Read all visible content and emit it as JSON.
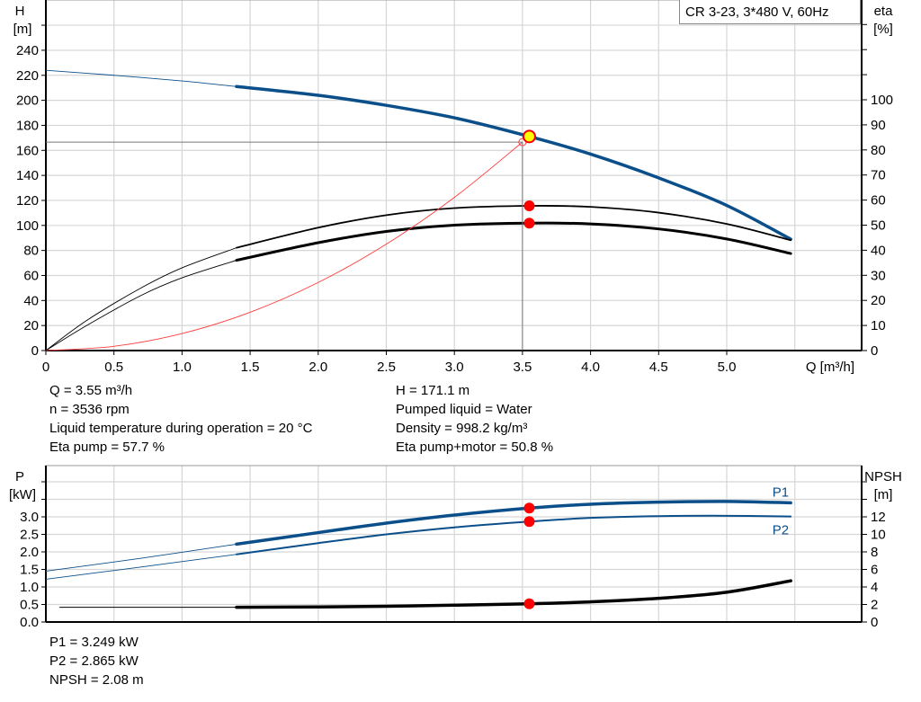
{
  "chart_data": [
    {
      "type": "line",
      "legend_box": "CR 3-23, 3*480 V, 60Hz",
      "xlabel": "Q [m³/h]",
      "ylabel_left": {
        "name": "H",
        "unit": "[m]"
      },
      "ylabel_right": {
        "name": "eta",
        "unit": "[%]"
      },
      "xlim": [
        0,
        6.0
      ],
      "ylim_left": [
        0,
        280
      ],
      "ylim_right": [
        0,
        140
      ],
      "x_ticks": [
        "0",
        "0.5",
        "1.0",
        "1.5",
        "2.0",
        "2.5",
        "3.0",
        "3.5",
        "4.0",
        "4.5",
        "5.0"
      ],
      "y_ticks_left": [
        "0",
        "20",
        "40",
        "60",
        "80",
        "100",
        "120",
        "140",
        "160",
        "180",
        "200",
        "220",
        "240"
      ],
      "y_ticks_right": [
        "0",
        "10",
        "20",
        "30",
        "40",
        "50",
        "60",
        "70",
        "80",
        "90",
        "100"
      ],
      "grid": true,
      "series": [
        {
          "id": "H",
          "axis": "left",
          "color": "#0b4f8a",
          "thin_until": 1.4,
          "points": [
            [
              0,
              224
            ],
            [
              0.5,
              220
            ],
            [
              1.0,
              215.5
            ],
            [
              1.4,
              211
            ],
            [
              2.0,
              204
            ],
            [
              2.5,
              196
            ],
            [
              3.0,
              186
            ],
            [
              3.55,
              171.1
            ],
            [
              4.0,
              157
            ],
            [
              4.5,
              138
            ],
            [
              5.0,
              116
            ],
            [
              5.47,
              89
            ]
          ]
        },
        {
          "id": "eta-pump",
          "axis": "right",
          "color": "#000000",
          "thin_until": 1.4,
          "width": 1.8,
          "points": [
            [
              0,
              0
            ],
            [
              0.3,
              12
            ],
            [
              0.7,
              25
            ],
            [
              1.0,
              33
            ],
            [
              1.4,
              41
            ],
            [
              2.0,
              49
            ],
            [
              2.5,
              54
            ],
            [
              3.0,
              56.8
            ],
            [
              3.55,
              57.7
            ],
            [
              4.0,
              57.3
            ],
            [
              4.5,
              55
            ],
            [
              5.0,
              50.5
            ],
            [
              5.47,
              44
            ]
          ]
        },
        {
          "id": "eta-pump-motor",
          "axis": "right",
          "color": "#000000",
          "thin_until": 1.4,
          "width": 3,
          "points": [
            [
              0,
              0
            ],
            [
              0.3,
              10
            ],
            [
              0.7,
              22
            ],
            [
              1.0,
              29
            ],
            [
              1.4,
              36
            ],
            [
              2.0,
              43
            ],
            [
              2.5,
              47.5
            ],
            [
              3.0,
              50
            ],
            [
              3.55,
              50.8
            ],
            [
              4.0,
              50.5
            ],
            [
              4.5,
              48.5
            ],
            [
              5.0,
              44.5
            ],
            [
              5.47,
              38.7
            ]
          ]
        },
        {
          "id": "system-curve",
          "axis": "left",
          "color": "#ff3b3b",
          "points": [
            [
              0,
              0
            ],
            [
              0.5,
              3.4
            ],
            [
              1.0,
              13.6
            ],
            [
              1.5,
              30.6
            ],
            [
              2.0,
              54.4
            ],
            [
              2.5,
              85
            ],
            [
              3.0,
              122.4
            ],
            [
              3.5,
              166.6
            ]
          ]
        }
      ],
      "operating_point": {
        "Q": 3.55,
        "H": 171.1,
        "eta_pump": 57.7,
        "eta_total": 50.8
      },
      "reference_point": {
        "Q": 3.5,
        "H": 166.6
      }
    },
    {
      "type": "line",
      "ylabel_left": {
        "name": "P",
        "unit": "[kW]"
      },
      "ylabel_right": {
        "name": "NPSH",
        "unit": "[m]"
      },
      "xlim": [
        0,
        6.0
      ],
      "ylim_left": [
        0,
        4.5
      ],
      "ylim_right": [
        0,
        18
      ],
      "y_ticks_left": [
        "0.0",
        "0.5",
        "1.0",
        "1.5",
        "2.0",
        "2.5",
        "3.0"
      ],
      "y_ticks_right": [
        "0",
        "2",
        "4",
        "6",
        "8",
        "10",
        "12"
      ],
      "grid": true,
      "series": [
        {
          "id": "P1",
          "name": "P1",
          "axis": "left",
          "color": "#0b4f8a",
          "thin_until": 1.4,
          "width": 3.5,
          "points": [
            [
              0,
              1.45
            ],
            [
              0.7,
              1.82
            ],
            [
              1.4,
              2.22
            ],
            [
              2.0,
              2.55
            ],
            [
              2.5,
              2.82
            ],
            [
              3.0,
              3.05
            ],
            [
              3.55,
              3.249
            ],
            [
              4.0,
              3.36
            ],
            [
              4.5,
              3.42
            ],
            [
              5.0,
              3.44
            ],
            [
              5.47,
              3.4
            ]
          ]
        },
        {
          "id": "P2",
          "name": "P2",
          "axis": "left",
          "color": "#0b4f8a",
          "thin_until": 1.4,
          "width": 2,
          "points": [
            [
              0,
              1.22
            ],
            [
              0.7,
              1.57
            ],
            [
              1.4,
              1.93
            ],
            [
              2.0,
              2.25
            ],
            [
              2.5,
              2.5
            ],
            [
              3.0,
              2.7
            ],
            [
              3.55,
              2.865
            ],
            [
              4.0,
              2.97
            ],
            [
              4.5,
              3.02
            ],
            [
              5.0,
              3.03
            ],
            [
              5.47,
              3.01
            ]
          ]
        },
        {
          "id": "NPSH",
          "axis": "right",
          "color": "#000000",
          "thin_until": 1.4,
          "width": 3.5,
          "points": [
            [
              0.1,
              1.68
            ],
            [
              1.4,
              1.68
            ],
            [
              2.0,
              1.72
            ],
            [
              2.5,
              1.8
            ],
            [
              3.0,
              1.92
            ],
            [
              3.55,
              2.08
            ],
            [
              4.0,
              2.3
            ],
            [
              4.5,
              2.7
            ],
            [
              5.0,
              3.4
            ],
            [
              5.47,
              4.7
            ]
          ]
        }
      ],
      "operating_point": {
        "Q": 3.55,
        "P1": 3.249,
        "P2": 2.865,
        "NPSH": 2.08
      }
    }
  ],
  "info": {
    "left": [
      "Q = 3.55 m³/h",
      "n = 3536 rpm",
      "Liquid temperature during operation = 20 °C",
      "Eta pump = 57.7 %"
    ],
    "right": [
      "H = 171.1 m",
      "Pumped liquid = Water",
      "Density = 998.2 kg/m³",
      "Eta pump+motor = 50.8 %"
    ],
    "bottom": [
      "P1 = 3.249 kW",
      "P2 = 2.865 kW",
      "NPSH = 2.08 m"
    ]
  }
}
